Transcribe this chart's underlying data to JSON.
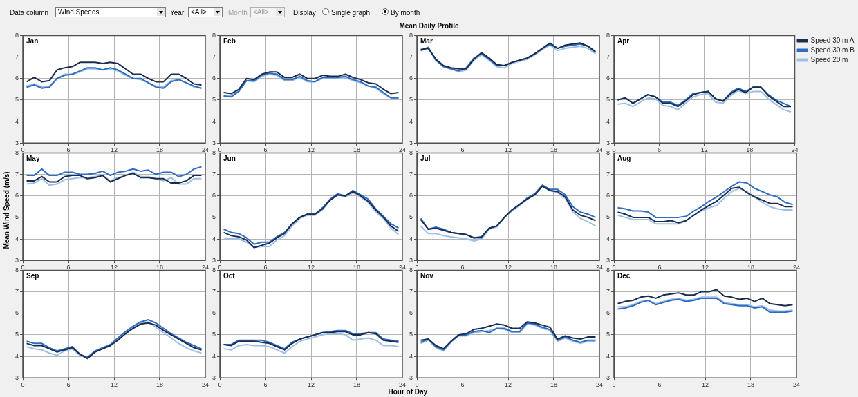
{
  "chart_data": [
    {
      "type": "other",
      "title": "Mean Daily Profile",
      "annotations": [
        "Data column",
        "Wind Speeds",
        "Year",
        "<All>",
        "Month",
        "<All>",
        "Display",
        "Single graph",
        "By month"
      ]
    },
    {
      "type": "line",
      "title": "Jan",
      "x": [
        0.5,
        1.5,
        2.5,
        3.5,
        4.5,
        5.5,
        6.5,
        7.5,
        8.5,
        9.5,
        10.5,
        11.5,
        12.5,
        13.5,
        14.5,
        15.5,
        16.5,
        17.5,
        18.5,
        19.5,
        20.5,
        21.5,
        22.5,
        23.5
      ],
      "xlim": [
        0,
        24
      ],
      "xticks": [
        0,
        6,
        12,
        18,
        24
      ],
      "ylim": [
        3,
        8
      ],
      "yticks": [
        3,
        4,
        5,
        6,
        7,
        8
      ],
      "grid": true,
      "series": [
        {
          "color": "#1c2c4c",
          "values": [
            5.85,
            6.05,
            5.85,
            5.9,
            6.4,
            6.5,
            6.55,
            6.75,
            6.75,
            6.75,
            6.7,
            6.75,
            6.7,
            6.45,
            6.2,
            6.2,
            6.0,
            5.85,
            5.85,
            6.2,
            6.2,
            6.0,
            5.75,
            5.7
          ]
        },
        {
          "color": "#2b6cc4",
          "values": [
            5.6,
            5.7,
            5.55,
            5.6,
            6.0,
            6.15,
            6.2,
            6.35,
            6.5,
            6.5,
            6.4,
            6.5,
            6.4,
            6.2,
            6.0,
            6.0,
            5.8,
            5.6,
            5.55,
            5.85,
            5.95,
            5.8,
            5.65,
            5.55
          ]
        },
        {
          "color": "#9dbfe6",
          "values": [
            5.65,
            5.75,
            5.6,
            5.65,
            6.0,
            6.2,
            6.2,
            6.3,
            6.45,
            6.45,
            6.4,
            6.45,
            6.35,
            6.15,
            6.0,
            5.95,
            5.8,
            5.65,
            5.6,
            5.9,
            5.95,
            5.8,
            5.6,
            5.55
          ]
        }
      ]
    },
    {
      "type": "line",
      "title": "Feb",
      "x": [
        0.5,
        1.5,
        2.5,
        3.5,
        4.5,
        5.5,
        6.5,
        7.5,
        8.5,
        9.5,
        10.5,
        11.5,
        12.5,
        13.5,
        14.5,
        15.5,
        16.5,
        17.5,
        18.5,
        19.5,
        20.5,
        21.5,
        22.5,
        23.5
      ],
      "xlim": [
        0,
        24
      ],
      "xticks": [
        0,
        6,
        12,
        18,
        24
      ],
      "ylim": [
        3,
        8
      ],
      "yticks": [
        3,
        4,
        5,
        6,
        7,
        8
      ],
      "grid": true,
      "series": [
        {
          "color": "#1c2c4c",
          "values": [
            5.35,
            5.3,
            5.5,
            6.0,
            5.95,
            6.2,
            6.3,
            6.3,
            6.05,
            6.05,
            6.2,
            6.0,
            6.0,
            6.15,
            6.1,
            6.1,
            6.2,
            6.05,
            5.95,
            5.8,
            5.75,
            5.5,
            5.3,
            5.35
          ]
        },
        {
          "color": "#2b6cc4",
          "values": [
            5.2,
            5.15,
            5.4,
            5.9,
            5.9,
            6.15,
            6.25,
            6.2,
            5.95,
            5.95,
            6.1,
            5.9,
            5.85,
            6.05,
            6.05,
            6.05,
            6.1,
            5.95,
            5.85,
            5.65,
            5.6,
            5.35,
            5.1,
            5.1
          ]
        },
        {
          "color": "#9dbfe6",
          "values": [
            5.15,
            5.2,
            5.45,
            5.9,
            5.85,
            6.1,
            6.2,
            6.15,
            5.9,
            5.9,
            6.05,
            5.85,
            5.85,
            6.0,
            6.0,
            6.0,
            6.05,
            5.9,
            5.8,
            5.65,
            5.55,
            5.3,
            5.1,
            5.1
          ]
        }
      ]
    },
    {
      "type": "line",
      "title": "Mar",
      "x": [
        0.5,
        1.5,
        2.5,
        3.5,
        4.5,
        5.5,
        6.5,
        7.5,
        8.5,
        9.5,
        10.5,
        11.5,
        12.5,
        13.5,
        14.5,
        15.5,
        16.5,
        17.5,
        18.5,
        19.5,
        20.5,
        21.5,
        22.5,
        23.5
      ],
      "xlim": [
        0,
        24
      ],
      "xticks": [
        0,
        6,
        12,
        18,
        24
      ],
      "ylim": [
        3,
        8
      ],
      "yticks": [
        3,
        4,
        5,
        6,
        7,
        8
      ],
      "grid": true,
      "series": [
        {
          "color": "#1c2c4c",
          "values": [
            7.35,
            7.4,
            6.9,
            6.6,
            6.5,
            6.45,
            6.45,
            6.9,
            7.2,
            6.95,
            6.65,
            6.6,
            6.75,
            6.85,
            6.95,
            7.15,
            7.4,
            7.65,
            7.4,
            7.55,
            7.6,
            7.65,
            7.5,
            7.25
          ]
        },
        {
          "color": "#2b6cc4",
          "values": [
            7.3,
            7.45,
            6.85,
            6.55,
            6.45,
            6.35,
            6.5,
            6.95,
            7.15,
            6.9,
            6.6,
            6.6,
            6.75,
            6.85,
            6.95,
            7.15,
            7.4,
            7.6,
            7.4,
            7.5,
            7.55,
            7.6,
            7.5,
            7.2
          ]
        },
        {
          "color": "#9dbfe6",
          "values": [
            7.3,
            7.4,
            6.85,
            6.55,
            6.45,
            6.3,
            6.4,
            6.85,
            7.1,
            6.85,
            6.55,
            6.5,
            6.7,
            6.8,
            6.9,
            7.1,
            7.35,
            7.55,
            7.3,
            7.4,
            7.45,
            7.5,
            7.4,
            7.15
          ]
        }
      ]
    },
    {
      "type": "line",
      "title": "Apr",
      "legend": "right",
      "x": [
        0.5,
        1.5,
        2.5,
        3.5,
        4.5,
        5.5,
        6.5,
        7.5,
        8.5,
        9.5,
        10.5,
        11.5,
        12.5,
        13.5,
        14.5,
        15.5,
        16.5,
        17.5,
        18.5,
        19.5,
        20.5,
        21.5,
        22.5,
        23.5
      ],
      "xlim": [
        0,
        24
      ],
      "xticks": [
        0,
        6,
        12,
        18,
        24
      ],
      "ylim": [
        3,
        8
      ],
      "yticks": [
        3,
        4,
        5,
        6,
        7,
        8
      ],
      "grid": true,
      "series": [
        {
          "name": "Speed 30 m A",
          "color": "#1c2c4c",
          "values": [
            5.0,
            5.1,
            4.85,
            5.05,
            5.25,
            5.15,
            4.85,
            4.85,
            4.7,
            4.95,
            5.25,
            5.35,
            5.4,
            5.05,
            4.95,
            5.3,
            5.5,
            5.35,
            5.6,
            5.6,
            5.2,
            4.95,
            4.7,
            4.7
          ]
        },
        {
          "name": "Speed 30 m B",
          "color": "#2b6cc4",
          "values": [
            5.0,
            5.1,
            4.85,
            5.05,
            5.25,
            5.15,
            4.9,
            4.9,
            4.75,
            5.0,
            5.3,
            5.35,
            5.4,
            5.05,
            4.95,
            5.35,
            5.55,
            5.4,
            5.6,
            5.6,
            5.25,
            5.0,
            4.85,
            4.7
          ]
        },
        {
          "name": "Speed 20 m",
          "color": "#9dbfe6",
          "values": [
            4.8,
            4.85,
            4.7,
            4.9,
            5.1,
            5.05,
            4.75,
            4.7,
            4.55,
            4.85,
            5.15,
            5.25,
            5.3,
            4.9,
            4.85,
            5.2,
            5.45,
            5.3,
            5.4,
            5.4,
            5.05,
            4.8,
            4.55,
            4.45
          ]
        }
      ]
    },
    {
      "type": "line",
      "title": "May",
      "ylabel": "Mean Wind Speed (m/s)",
      "x": [
        0.5,
        1.5,
        2.5,
        3.5,
        4.5,
        5.5,
        6.5,
        7.5,
        8.5,
        9.5,
        10.5,
        11.5,
        12.5,
        13.5,
        14.5,
        15.5,
        16.5,
        17.5,
        18.5,
        19.5,
        20.5,
        21.5,
        22.5,
        23.5
      ],
      "xlim": [
        0,
        24
      ],
      "xticks": [
        0,
        6,
        12,
        18,
        24
      ],
      "ylim": [
        3,
        8
      ],
      "yticks": [
        3,
        4,
        5,
        6,
        7,
        8
      ],
      "grid": true,
      "series": [
        {
          "color": "#1c2c4c",
          "values": [
            6.7,
            6.7,
            6.9,
            6.65,
            6.65,
            6.9,
            6.95,
            6.95,
            6.8,
            6.85,
            6.95,
            6.65,
            6.8,
            6.95,
            7.05,
            6.85,
            6.85,
            6.8,
            6.8,
            6.6,
            6.6,
            6.7,
            6.95,
            6.95
          ]
        },
        {
          "color": "#2b6cc4",
          "values": [
            6.95,
            6.95,
            7.25,
            6.95,
            6.95,
            7.1,
            7.1,
            7.0,
            7.0,
            7.05,
            7.15,
            6.95,
            7.1,
            7.15,
            7.25,
            7.15,
            7.2,
            7.0,
            7.1,
            7.1,
            6.9,
            7.0,
            7.25,
            7.35
          ]
        },
        {
          "color": "#9dbfe6",
          "values": [
            6.55,
            6.6,
            6.8,
            6.5,
            6.55,
            6.75,
            6.8,
            6.85,
            6.85,
            6.9,
            6.95,
            6.7,
            6.85,
            6.95,
            7.1,
            6.9,
            6.9,
            6.8,
            6.7,
            6.85,
            6.55,
            6.55,
            6.8,
            6.8
          ]
        }
      ]
    },
    {
      "type": "line",
      "title": "Jun",
      "x": [
        0.5,
        1.5,
        2.5,
        3.5,
        4.5,
        5.5,
        6.5,
        7.5,
        8.5,
        9.5,
        10.5,
        11.5,
        12.5,
        13.5,
        14.5,
        15.5,
        16.5,
        17.5,
        18.5,
        19.5,
        20.5,
        21.5,
        22.5,
        23.5
      ],
      "xlim": [
        0,
        24
      ],
      "xticks": [
        0,
        6,
        12,
        18,
        24
      ],
      "ylim": [
        3,
        8
      ],
      "yticks": [
        3,
        4,
        5,
        6,
        7,
        8
      ],
      "grid": true,
      "series": [
        {
          "color": "#1c2c4c",
          "values": [
            4.3,
            4.15,
            4.1,
            3.95,
            3.6,
            3.7,
            3.8,
            4.05,
            4.25,
            4.7,
            5.0,
            5.15,
            5.15,
            5.4,
            5.8,
            6.05,
            6.0,
            6.2,
            6.0,
            5.75,
            5.35,
            5.0,
            4.6,
            4.35
          ]
        },
        {
          "color": "#2b6cc4",
          "values": [
            4.45,
            4.3,
            4.25,
            4.05,
            3.75,
            3.85,
            3.85,
            4.1,
            4.3,
            4.7,
            5.0,
            5.15,
            5.15,
            5.45,
            5.85,
            6.1,
            6.0,
            6.25,
            6.05,
            5.85,
            5.4,
            5.05,
            4.7,
            4.5
          ]
        },
        {
          "color": "#9dbfe6",
          "values": [
            4.05,
            4.0,
            4.0,
            3.85,
            3.6,
            3.65,
            3.65,
            3.95,
            4.15,
            4.6,
            4.95,
            5.1,
            5.1,
            5.35,
            5.8,
            6.05,
            5.95,
            6.15,
            5.95,
            5.7,
            5.25,
            4.95,
            4.5,
            4.2
          ]
        }
      ]
    },
    {
      "type": "line",
      "title": "Jul",
      "x": [
        0.5,
        1.5,
        2.5,
        3.5,
        4.5,
        5.5,
        6.5,
        7.5,
        8.5,
        9.5,
        10.5,
        11.5,
        12.5,
        13.5,
        14.5,
        15.5,
        16.5,
        17.5,
        18.5,
        19.5,
        20.5,
        21.5,
        22.5,
        23.5
      ],
      "xlim": [
        0,
        24
      ],
      "xticks": [
        0,
        6,
        12,
        18,
        24
      ],
      "ylim": [
        3,
        8
      ],
      "yticks": [
        3,
        4,
        5,
        6,
        7,
        8
      ],
      "grid": true,
      "series": [
        {
          "color": "#1c2c4c",
          "values": [
            4.9,
            4.45,
            4.5,
            4.4,
            4.3,
            4.25,
            4.2,
            4.05,
            4.1,
            4.5,
            4.6,
            5.0,
            5.35,
            5.6,
            5.85,
            6.05,
            6.45,
            6.25,
            6.2,
            5.95,
            5.35,
            5.1,
            5.0,
            4.85
          ]
        },
        {
          "color": "#2b6cc4",
          "values": [
            4.95,
            4.45,
            4.55,
            4.45,
            4.3,
            4.25,
            4.2,
            4.05,
            4.05,
            4.5,
            4.6,
            5.0,
            5.35,
            5.6,
            5.9,
            6.1,
            6.5,
            6.3,
            6.3,
            6.05,
            5.5,
            5.25,
            5.15,
            5.0
          ]
        },
        {
          "color": "#9dbfe6",
          "values": [
            4.6,
            4.25,
            4.25,
            4.15,
            4.1,
            4.05,
            4.0,
            3.9,
            4.0,
            4.45,
            4.55,
            5.0,
            5.3,
            5.55,
            5.85,
            6.05,
            6.45,
            6.25,
            6.15,
            5.9,
            5.25,
            4.95,
            4.8,
            4.6
          ]
        }
      ]
    },
    {
      "type": "line",
      "title": "Aug",
      "x": [
        0.5,
        1.5,
        2.5,
        3.5,
        4.5,
        5.5,
        6.5,
        7.5,
        8.5,
        9.5,
        10.5,
        11.5,
        12.5,
        13.5,
        14.5,
        15.5,
        16.5,
        17.5,
        18.5,
        19.5,
        20.5,
        21.5,
        22.5,
        23.5
      ],
      "xlim": [
        0,
        24
      ],
      "xticks": [
        0,
        6,
        12,
        18,
        24
      ],
      "ylim": [
        3,
        8
      ],
      "yticks": [
        3,
        4,
        5,
        6,
        7,
        8
      ],
      "grid": true,
      "series": [
        {
          "color": "#1c2c4c",
          "values": [
            5.25,
            5.15,
            5.0,
            5.0,
            5.0,
            4.8,
            4.8,
            4.85,
            4.75,
            4.85,
            5.1,
            5.35,
            5.55,
            5.75,
            6.05,
            6.35,
            6.4,
            6.15,
            5.95,
            5.8,
            5.65,
            5.65,
            5.5,
            5.5
          ]
        },
        {
          "color": "#2b6cc4",
          "values": [
            5.45,
            5.4,
            5.3,
            5.3,
            5.25,
            5.0,
            5.0,
            5.0,
            5.0,
            5.05,
            5.3,
            5.5,
            5.75,
            5.95,
            6.2,
            6.45,
            6.65,
            6.6,
            6.35,
            6.2,
            6.05,
            5.95,
            5.7,
            5.6
          ]
        },
        {
          "color": "#9dbfe6",
          "values": [
            5.1,
            5.0,
            4.9,
            4.9,
            4.9,
            4.7,
            4.7,
            4.7,
            4.7,
            4.85,
            5.1,
            5.3,
            5.45,
            5.55,
            5.9,
            6.2,
            6.35,
            6.2,
            5.95,
            5.7,
            5.5,
            5.4,
            5.35,
            5.35
          ]
        }
      ]
    },
    {
      "type": "line",
      "title": "Sep",
      "x": [
        0.5,
        1.5,
        2.5,
        3.5,
        4.5,
        5.5,
        6.5,
        7.5,
        8.5,
        9.5,
        10.5,
        11.5,
        12.5,
        13.5,
        14.5,
        15.5,
        16.5,
        17.5,
        18.5,
        19.5,
        20.5,
        21.5,
        22.5,
        23.5
      ],
      "xlim": [
        0,
        24
      ],
      "xticks": [
        0,
        6,
        12,
        18,
        24
      ],
      "ylim": [
        3,
        8
      ],
      "yticks": [
        3,
        4,
        5,
        6,
        7,
        8
      ],
      "grid": true,
      "series": [
        {
          "color": "#1c2c4c",
          "values": [
            4.6,
            4.5,
            4.5,
            4.35,
            4.2,
            4.3,
            4.4,
            4.1,
            3.9,
            4.2,
            4.35,
            4.5,
            4.75,
            5.05,
            5.3,
            5.5,
            5.55,
            5.45,
            5.2,
            5.0,
            4.8,
            4.6,
            4.4,
            4.3
          ]
        },
        {
          "color": "#2b6cc4",
          "values": [
            4.7,
            4.6,
            4.6,
            4.4,
            4.25,
            4.35,
            4.45,
            4.1,
            3.95,
            4.25,
            4.4,
            4.55,
            4.85,
            5.15,
            5.4,
            5.6,
            5.7,
            5.55,
            5.3,
            5.05,
            4.85,
            4.65,
            4.5,
            4.35
          ]
        },
        {
          "color": "#9dbfe6",
          "values": [
            4.45,
            4.35,
            4.3,
            4.15,
            4.05,
            4.25,
            4.35,
            4.05,
            3.9,
            4.2,
            4.35,
            4.5,
            4.8,
            5.1,
            5.35,
            5.55,
            5.6,
            5.35,
            5.1,
            4.85,
            4.6,
            4.4,
            4.25,
            4.15
          ]
        }
      ]
    },
    {
      "type": "line",
      "title": "Oct",
      "xlabel": "Hour of Day",
      "x": [
        0.5,
        1.5,
        2.5,
        3.5,
        4.5,
        5.5,
        6.5,
        7.5,
        8.5,
        9.5,
        10.5,
        11.5,
        12.5,
        13.5,
        14.5,
        15.5,
        16.5,
        17.5,
        18.5,
        19.5,
        20.5,
        21.5,
        22.5,
        23.5
      ],
      "xlim": [
        0,
        24
      ],
      "xticks": [
        0,
        6,
        12,
        18,
        24
      ],
      "ylim": [
        3,
        8
      ],
      "yticks": [
        3,
        4,
        5,
        6,
        7,
        8
      ],
      "grid": true,
      "series": [
        {
          "color": "#1c2c4c",
          "values": [
            4.55,
            4.5,
            4.7,
            4.7,
            4.7,
            4.65,
            4.6,
            4.45,
            4.3,
            4.6,
            4.8,
            4.9,
            5.0,
            5.1,
            5.1,
            5.15,
            5.15,
            5.0,
            5.0,
            5.1,
            5.05,
            4.75,
            4.7,
            4.65
          ]
        },
        {
          "color": "#2b6cc4",
          "values": [
            4.55,
            4.55,
            4.75,
            4.75,
            4.75,
            4.75,
            4.65,
            4.5,
            4.35,
            4.65,
            4.8,
            4.9,
            5.0,
            5.1,
            5.15,
            5.2,
            5.2,
            5.05,
            5.05,
            5.1,
            5.1,
            4.8,
            4.75,
            4.7
          ]
        },
        {
          "color": "#9dbfe6",
          "values": [
            4.35,
            4.3,
            4.5,
            4.55,
            4.5,
            4.5,
            4.45,
            4.3,
            4.15,
            4.45,
            4.7,
            4.8,
            4.9,
            5.0,
            5.05,
            5.05,
            5.0,
            4.75,
            4.8,
            4.85,
            4.75,
            4.5,
            4.5,
            4.45
          ]
        }
      ]
    },
    {
      "type": "line",
      "title": "Nov",
      "x": [
        0.5,
        1.5,
        2.5,
        3.5,
        4.5,
        5.5,
        6.5,
        7.5,
        8.5,
        9.5,
        10.5,
        11.5,
        12.5,
        13.5,
        14.5,
        15.5,
        16.5,
        17.5,
        18.5,
        19.5,
        20.5,
        21.5,
        22.5,
        23.5
      ],
      "xlim": [
        0,
        24
      ],
      "xticks": [
        0,
        6,
        12,
        18,
        24
      ],
      "ylim": [
        3,
        8
      ],
      "yticks": [
        3,
        4,
        5,
        6,
        7,
        8
      ],
      "grid": true,
      "series": [
        {
          "color": "#1c2c4c",
          "values": [
            4.75,
            4.8,
            4.5,
            4.35,
            4.7,
            5.0,
            5.05,
            5.25,
            5.3,
            5.4,
            5.5,
            5.45,
            5.3,
            5.3,
            5.6,
            5.55,
            5.45,
            5.35,
            4.8,
            4.95,
            4.85,
            4.8,
            4.9,
            4.9
          ]
        },
        {
          "color": "#2b6cc4",
          "values": [
            4.65,
            4.8,
            4.45,
            4.3,
            4.7,
            5.0,
            5.0,
            5.15,
            5.2,
            5.1,
            5.3,
            5.3,
            5.15,
            5.15,
            5.55,
            5.5,
            5.35,
            5.25,
            4.75,
            4.9,
            4.75,
            4.65,
            4.75,
            4.75
          ]
        },
        {
          "color": "#9dbfe6",
          "values": [
            4.6,
            4.75,
            4.4,
            4.25,
            4.65,
            4.95,
            4.95,
            5.1,
            5.15,
            5.2,
            5.3,
            5.25,
            5.1,
            5.1,
            5.5,
            5.45,
            5.3,
            5.2,
            4.7,
            4.85,
            4.7,
            4.6,
            4.7,
            4.7
          ]
        }
      ]
    },
    {
      "type": "line",
      "title": "Dec",
      "x": [
        0.5,
        1.5,
        2.5,
        3.5,
        4.5,
        5.5,
        6.5,
        7.5,
        8.5,
        9.5,
        10.5,
        11.5,
        12.5,
        13.5,
        14.5,
        15.5,
        16.5,
        17.5,
        18.5,
        19.5,
        20.5,
        21.5,
        22.5,
        23.5
      ],
      "xlim": [
        0,
        24
      ],
      "xticks": [
        0,
        6,
        12,
        18,
        24
      ],
      "ylim": [
        3,
        8
      ],
      "yticks": [
        3,
        4,
        5,
        6,
        7,
        8
      ],
      "grid": true,
      "series": [
        {
          "color": "#1c2c4c",
          "values": [
            6.45,
            6.55,
            6.6,
            6.75,
            6.8,
            6.7,
            6.85,
            6.9,
            6.95,
            6.85,
            6.85,
            7.0,
            7.0,
            7.1,
            6.8,
            6.75,
            6.65,
            6.7,
            6.55,
            6.7,
            6.45,
            6.4,
            6.35,
            6.4
          ]
        },
        {
          "color": "#2b6cc4",
          "values": [
            6.2,
            6.25,
            6.35,
            6.5,
            6.6,
            6.4,
            6.5,
            6.6,
            6.65,
            6.55,
            6.6,
            6.7,
            6.7,
            6.7,
            6.45,
            6.4,
            6.35,
            6.35,
            6.25,
            6.3,
            6.05,
            6.05,
            6.05,
            6.1
          ]
        },
        {
          "color": "#9dbfe6",
          "values": [
            6.3,
            6.3,
            6.4,
            6.55,
            6.6,
            6.45,
            6.55,
            6.65,
            6.7,
            6.6,
            6.65,
            6.75,
            6.75,
            6.75,
            6.5,
            6.45,
            6.4,
            6.4,
            6.3,
            6.35,
            6.15,
            6.1,
            6.1,
            6.15
          ]
        }
      ]
    }
  ]
}
